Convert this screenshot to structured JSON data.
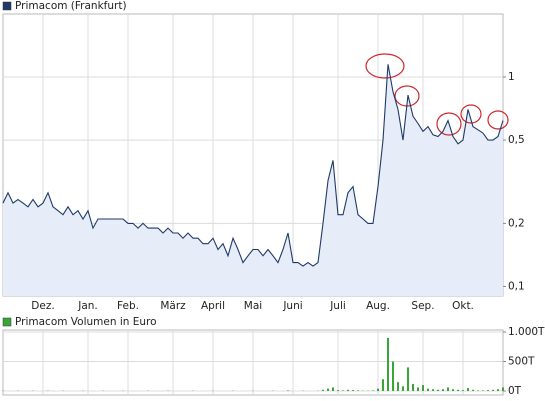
{
  "chart_data": [
    {
      "type": "line",
      "log": true,
      "grid": true,
      "categories": [
        null,
        null,
        null,
        null,
        null,
        null,
        null,
        null,
        "Dez.",
        null,
        null,
        null,
        null,
        null,
        null,
        null,
        null,
        "Jan.",
        null,
        null,
        null,
        null,
        null,
        null,
        null,
        "Feb.",
        null,
        null,
        null,
        null,
        null,
        null,
        null,
        null,
        "März",
        null,
        null,
        null,
        null,
        null,
        null,
        null,
        "April",
        null,
        null,
        null,
        null,
        null,
        null,
        null,
        "Mai",
        null,
        null,
        null,
        null,
        null,
        null,
        null,
        "Juni",
        null,
        null,
        null,
        null,
        null,
        null,
        null,
        null,
        "Juli",
        null,
        null,
        null,
        null,
        null,
        null,
        null,
        "Aug.",
        null,
        null,
        null,
        null,
        null,
        null,
        null,
        null,
        "Sep.",
        null,
        null,
        null,
        null,
        null,
        null,
        null,
        "Okt.",
        null,
        null,
        null,
        null,
        null,
        null,
        null,
        null
      ],
      "series": [
        {
          "name": "Primacom (Frankfurt)",
          "color": "#1f3a68",
          "values": [
            0.25,
            0.28,
            0.25,
            0.26,
            0.25,
            0.24,
            0.26,
            0.24,
            0.25,
            0.28,
            0.24,
            0.23,
            0.22,
            0.24,
            0.22,
            0.23,
            0.21,
            0.23,
            0.19,
            0.21,
            0.21,
            0.21,
            0.21,
            0.21,
            0.21,
            0.2,
            0.2,
            0.19,
            0.2,
            0.19,
            0.19,
            0.19,
            0.18,
            0.19,
            0.18,
            0.18,
            0.17,
            0.18,
            0.17,
            0.17,
            0.16,
            0.16,
            0.17,
            0.15,
            0.16,
            0.14,
            0.17,
            0.15,
            0.13,
            0.14,
            0.15,
            0.15,
            0.14,
            0.15,
            0.14,
            0.13,
            0.15,
            0.18,
            0.13,
            0.13,
            0.125,
            0.13,
            0.125,
            0.13,
            0.2,
            0.32,
            0.4,
            0.22,
            0.22,
            0.28,
            0.3,
            0.22,
            0.21,
            0.2,
            0.2,
            0.3,
            0.5,
            1.15,
            0.85,
            0.7,
            0.5,
            0.82,
            0.65,
            0.6,
            0.55,
            0.58,
            0.53,
            0.52,
            0.55,
            0.62,
            0.52,
            0.48,
            0.5,
            0.7,
            0.58,
            0.56,
            0.54,
            0.5,
            0.5,
            0.52,
            0.62
          ]
        }
      ],
      "ylim": [
        0.09,
        2
      ],
      "yticks": [
        {
          "value": 0.1,
          "label": "0,1"
        },
        {
          "value": 0.2,
          "label": "0,2"
        },
        {
          "value": 0.5,
          "label": "0,5"
        },
        1
      ]
    },
    {
      "type": "bar",
      "grid": true,
      "series": [
        {
          "name": "Primacom Volumen in Euro",
          "color": "#3aa63a",
          "values": [
            5,
            0,
            0,
            5,
            0,
            0,
            5,
            0,
            0,
            5,
            0,
            0,
            5,
            0,
            0,
            0,
            5,
            0,
            0,
            0,
            5,
            0,
            0,
            0,
            5,
            0,
            0,
            0,
            0,
            5,
            0,
            0,
            0,
            5,
            0,
            0,
            0,
            0,
            5,
            0,
            0,
            0,
            5,
            0,
            0,
            0,
            5,
            0,
            0,
            0,
            5,
            0,
            0,
            0,
            5,
            0,
            0,
            10,
            0,
            0,
            5,
            0,
            0,
            5,
            20,
            40,
            60,
            15,
            10,
            20,
            15,
            10,
            5,
            5,
            10,
            40,
            200,
            900,
            500,
            150,
            80,
            400,
            120,
            60,
            100,
            40,
            30,
            20,
            30,
            60,
            30,
            20,
            15,
            50,
            20,
            10,
            10,
            15,
            20,
            30,
            60
          ]
        }
      ],
      "ylim": [
        0,
        1000
      ],
      "yticks": [
        {
          "value": 0,
          "label": "0T"
        },
        {
          "value": 500,
          "label": "500T"
        },
        {
          "value": 1000,
          "label": "1.000T"
        }
      ]
    }
  ]
}
